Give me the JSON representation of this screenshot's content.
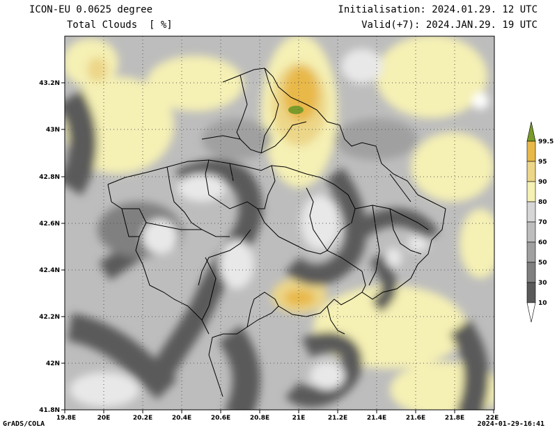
{
  "header": {
    "model": "ICON-EU 0.0625 degree",
    "variable": "Total Clouds  [ %]",
    "init": "Initialisation: 2024.01.29. 12 UTC",
    "valid": "Valid(+7): 2024.JAN.29. 19 UTC"
  },
  "map": {
    "lon_range": [
      19.8,
      22.0
    ],
    "lat_range": [
      41.8,
      43.4
    ],
    "x_ticks": [
      "19.8E",
      "20E",
      "20.2E",
      "20.4E",
      "20.6E",
      "20.8E",
      "21E",
      "21.2E",
      "21.4E",
      "21.6E",
      "21.8E",
      "22E"
    ],
    "y_ticks": [
      "41.8N",
      "42N",
      "42.2N",
      "42.4N",
      "42.6N",
      "42.8N",
      "43N",
      "43.2N"
    ],
    "grid": "dotted"
  },
  "colorbar": {
    "levels": [
      "10",
      "30",
      "50",
      "60",
      "70",
      "80",
      "90",
      "95",
      "99.5"
    ],
    "colors": [
      "#5a5a5a",
      "#808080",
      "#a0a0a0",
      "#bdbdbd",
      "#d6d6d6",
      "#f5f0b4",
      "#ecd688",
      "#e8b84a",
      "#7a9a2a"
    ]
  },
  "footer": {
    "left": "GrADS/COLA",
    "right": "2024-01-29-16:41"
  }
}
